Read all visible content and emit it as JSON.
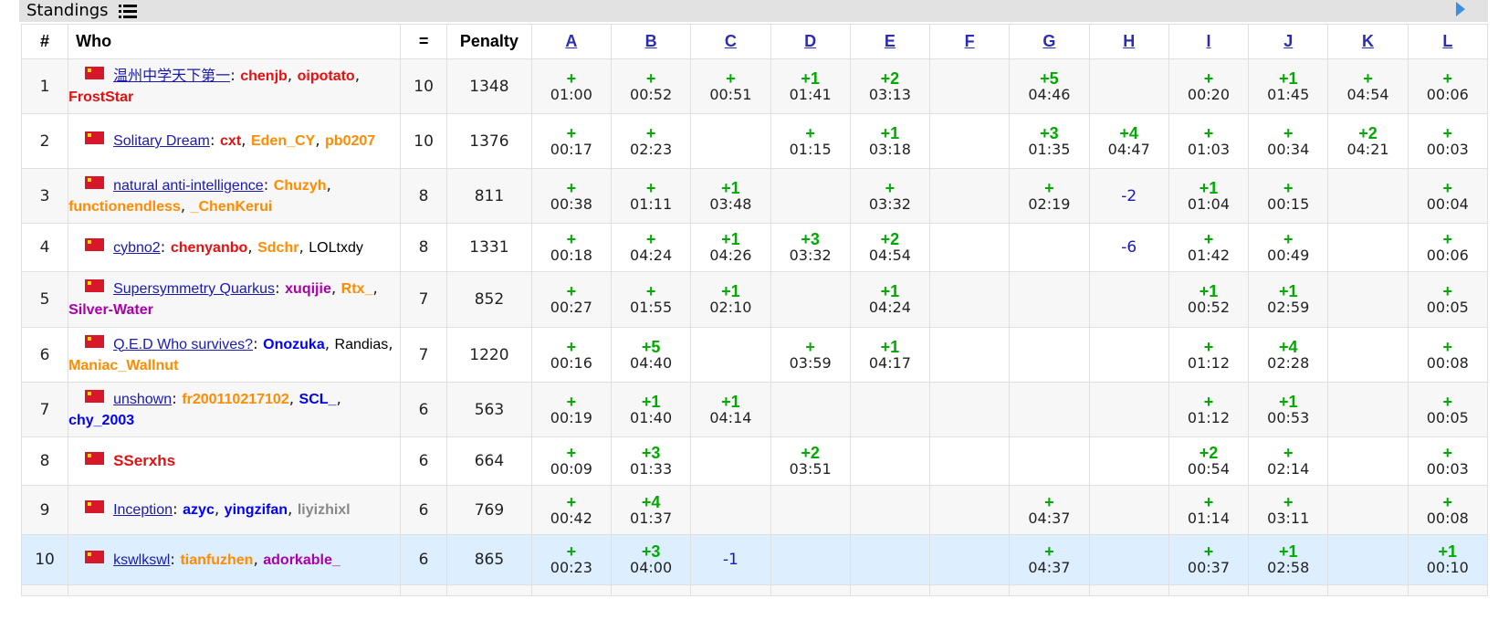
{
  "header": {
    "title": "Standings",
    "list_icon": "list-icon",
    "expand_icon": "play-icon"
  },
  "columns": {
    "rank": "#",
    "who": "Who",
    "solved": "=",
    "penalty": "Penalty",
    "problems": [
      "A",
      "B",
      "C",
      "D",
      "E",
      "F",
      "G",
      "H",
      "I",
      "J",
      "K",
      "L"
    ]
  },
  "rows": [
    {
      "rank": "1",
      "team": "温州中学天下第一",
      "members": [
        {
          "n": "chenjb",
          "c": "red"
        },
        {
          "n": "oipotato",
          "c": "red"
        },
        {
          "n": "FrostStar",
          "c": "red"
        }
      ],
      "solved": "10",
      "penalty": "1348",
      "cells": [
        [
          "+",
          "01:00"
        ],
        [
          "+",
          "00:52"
        ],
        [
          "+",
          "00:51"
        ],
        [
          "+1",
          "01:41"
        ],
        [
          "+2",
          "03:13"
        ],
        null,
        [
          "+5",
          "04:46"
        ],
        null,
        [
          "+",
          "00:20"
        ],
        [
          "+1",
          "01:45"
        ],
        [
          "+",
          "04:54"
        ],
        [
          "+",
          "00:06"
        ]
      ]
    },
    {
      "rank": "2",
      "team": "Solitary Dream",
      "members": [
        {
          "n": "cxt",
          "c": "red"
        },
        {
          "n": "Eden_CY",
          "c": "orange"
        },
        {
          "n": "pb0207",
          "c": "orange"
        }
      ],
      "solved": "10",
      "penalty": "1376",
      "cells": [
        [
          "+",
          "00:17"
        ],
        [
          "+",
          "02:23"
        ],
        null,
        [
          "+",
          "01:15"
        ],
        [
          "+1",
          "03:18"
        ],
        null,
        [
          "+3",
          "01:35"
        ],
        [
          "+4",
          "04:47"
        ],
        [
          "+",
          "01:03"
        ],
        [
          "+",
          "00:34"
        ],
        [
          "+2",
          "04:21"
        ],
        [
          "+",
          "00:03"
        ]
      ]
    },
    {
      "rank": "3",
      "team": "natural anti-intelligence",
      "members": [
        {
          "n": "Chuzyh",
          "c": "orange"
        },
        {
          "n": "functionendless",
          "c": "orange"
        },
        {
          "n": "_ChenKerui",
          "c": "orange"
        }
      ],
      "solved": "8",
      "penalty": "811",
      "cells": [
        [
          "+",
          "00:38"
        ],
        [
          "+",
          "01:11"
        ],
        [
          "+1",
          "03:48"
        ],
        null,
        [
          "+",
          "03:32"
        ],
        null,
        [
          "+",
          "02:19"
        ],
        [
          "-2",
          ""
        ],
        [
          "+1",
          "01:04"
        ],
        [
          "+",
          "00:15"
        ],
        null,
        [
          "+",
          "00:04"
        ]
      ]
    },
    {
      "rank": "4",
      "team": "cybno2",
      "members": [
        {
          "n": "chenyanbo",
          "c": "red"
        },
        {
          "n": "Sdchr",
          "c": "orange"
        },
        {
          "n": "LOLtxdy",
          "c": "black"
        }
      ],
      "solved": "8",
      "penalty": "1331",
      "cells": [
        [
          "+",
          "00:18"
        ],
        [
          "+",
          "04:24"
        ],
        [
          "+1",
          "04:26"
        ],
        [
          "+3",
          "03:32"
        ],
        [
          "+2",
          "04:54"
        ],
        null,
        null,
        [
          "-6",
          ""
        ],
        [
          "+",
          "01:42"
        ],
        [
          "+",
          "00:49"
        ],
        null,
        [
          "+",
          "00:06"
        ]
      ]
    },
    {
      "rank": "5",
      "team": "Supersymmetry Quarkus",
      "members": [
        {
          "n": "xuqijie",
          "c": "purple"
        },
        {
          "n": "Rtx_",
          "c": "orange"
        },
        {
          "n": "Silver-Water",
          "c": "purple"
        }
      ],
      "solved": "7",
      "penalty": "852",
      "cells": [
        [
          "+",
          "00:27"
        ],
        [
          "+",
          "01:55"
        ],
        [
          "+1",
          "02:10"
        ],
        null,
        [
          "+1",
          "04:24"
        ],
        null,
        null,
        null,
        [
          "+1",
          "00:52"
        ],
        [
          "+1",
          "02:59"
        ],
        null,
        [
          "+",
          "00:05"
        ]
      ]
    },
    {
      "rank": "6",
      "team": "Q.E.D Who survives?",
      "members": [
        {
          "n": "Onozuka",
          "c": "blue"
        },
        {
          "n": "Randias",
          "c": "black"
        },
        {
          "n": "Maniac_Wallnut",
          "c": "orange"
        }
      ],
      "solved": "7",
      "penalty": "1220",
      "cells": [
        [
          "+",
          "00:16"
        ],
        [
          "+5",
          "04:40"
        ],
        null,
        [
          "+",
          "03:59"
        ],
        [
          "+1",
          "04:17"
        ],
        null,
        null,
        null,
        [
          "+",
          "01:12"
        ],
        [
          "+4",
          "02:28"
        ],
        null,
        [
          "+",
          "00:08"
        ]
      ]
    },
    {
      "rank": "7",
      "team": "unshown",
      "members": [
        {
          "n": "fr200110217102",
          "c": "orange"
        },
        {
          "n": "SCL_",
          "c": "blue"
        },
        {
          "n": "chy_2003",
          "c": "blue"
        }
      ],
      "solved": "6",
      "penalty": "563",
      "cells": [
        [
          "+",
          "00:19"
        ],
        [
          "+1",
          "01:40"
        ],
        [
          "+1",
          "04:14"
        ],
        null,
        null,
        null,
        null,
        null,
        [
          "+",
          "01:12"
        ],
        [
          "+1",
          "00:53"
        ],
        null,
        [
          "+",
          "00:05"
        ]
      ]
    },
    {
      "rank": "8",
      "team": "",
      "members": [
        {
          "n": "SSerxhs",
          "c": "teamred"
        }
      ],
      "solved": "6",
      "penalty": "664",
      "cells": [
        [
          "+",
          "00:09"
        ],
        [
          "+3",
          "01:33"
        ],
        null,
        [
          "+2",
          "03:51"
        ],
        null,
        null,
        null,
        null,
        [
          "+2",
          "00:54"
        ],
        [
          "+",
          "02:14"
        ],
        null,
        [
          "+",
          "00:03"
        ]
      ]
    },
    {
      "rank": "9",
      "team": "Inception",
      "members": [
        {
          "n": "azyc",
          "c": "blue"
        },
        {
          "n": "yingzifan",
          "c": "blue"
        },
        {
          "n": "liyizhixl",
          "c": "gray"
        }
      ],
      "solved": "6",
      "penalty": "769",
      "cells": [
        [
          "+",
          "00:42"
        ],
        [
          "+4",
          "01:37"
        ],
        null,
        null,
        null,
        null,
        [
          "+",
          "04:37"
        ],
        null,
        [
          "+",
          "01:14"
        ],
        [
          "+",
          "03:11"
        ],
        null,
        [
          "+",
          "00:08"
        ]
      ]
    },
    {
      "rank": "10",
      "team": "kswlkswl",
      "members": [
        {
          "n": "tianfuzhen",
          "c": "orange"
        },
        {
          "n": "adorkable_",
          "c": "purple"
        }
      ],
      "solved": "6",
      "penalty": "865",
      "cells": [
        [
          "+",
          "00:23"
        ],
        [
          "+3",
          "04:00"
        ],
        [
          "-1",
          ""
        ],
        null,
        null,
        null,
        [
          "+",
          "04:37"
        ],
        null,
        [
          "+",
          "00:37"
        ],
        [
          "+1",
          "02:58"
        ],
        null,
        [
          "+1",
          "00:10"
        ]
      ]
    }
  ]
}
